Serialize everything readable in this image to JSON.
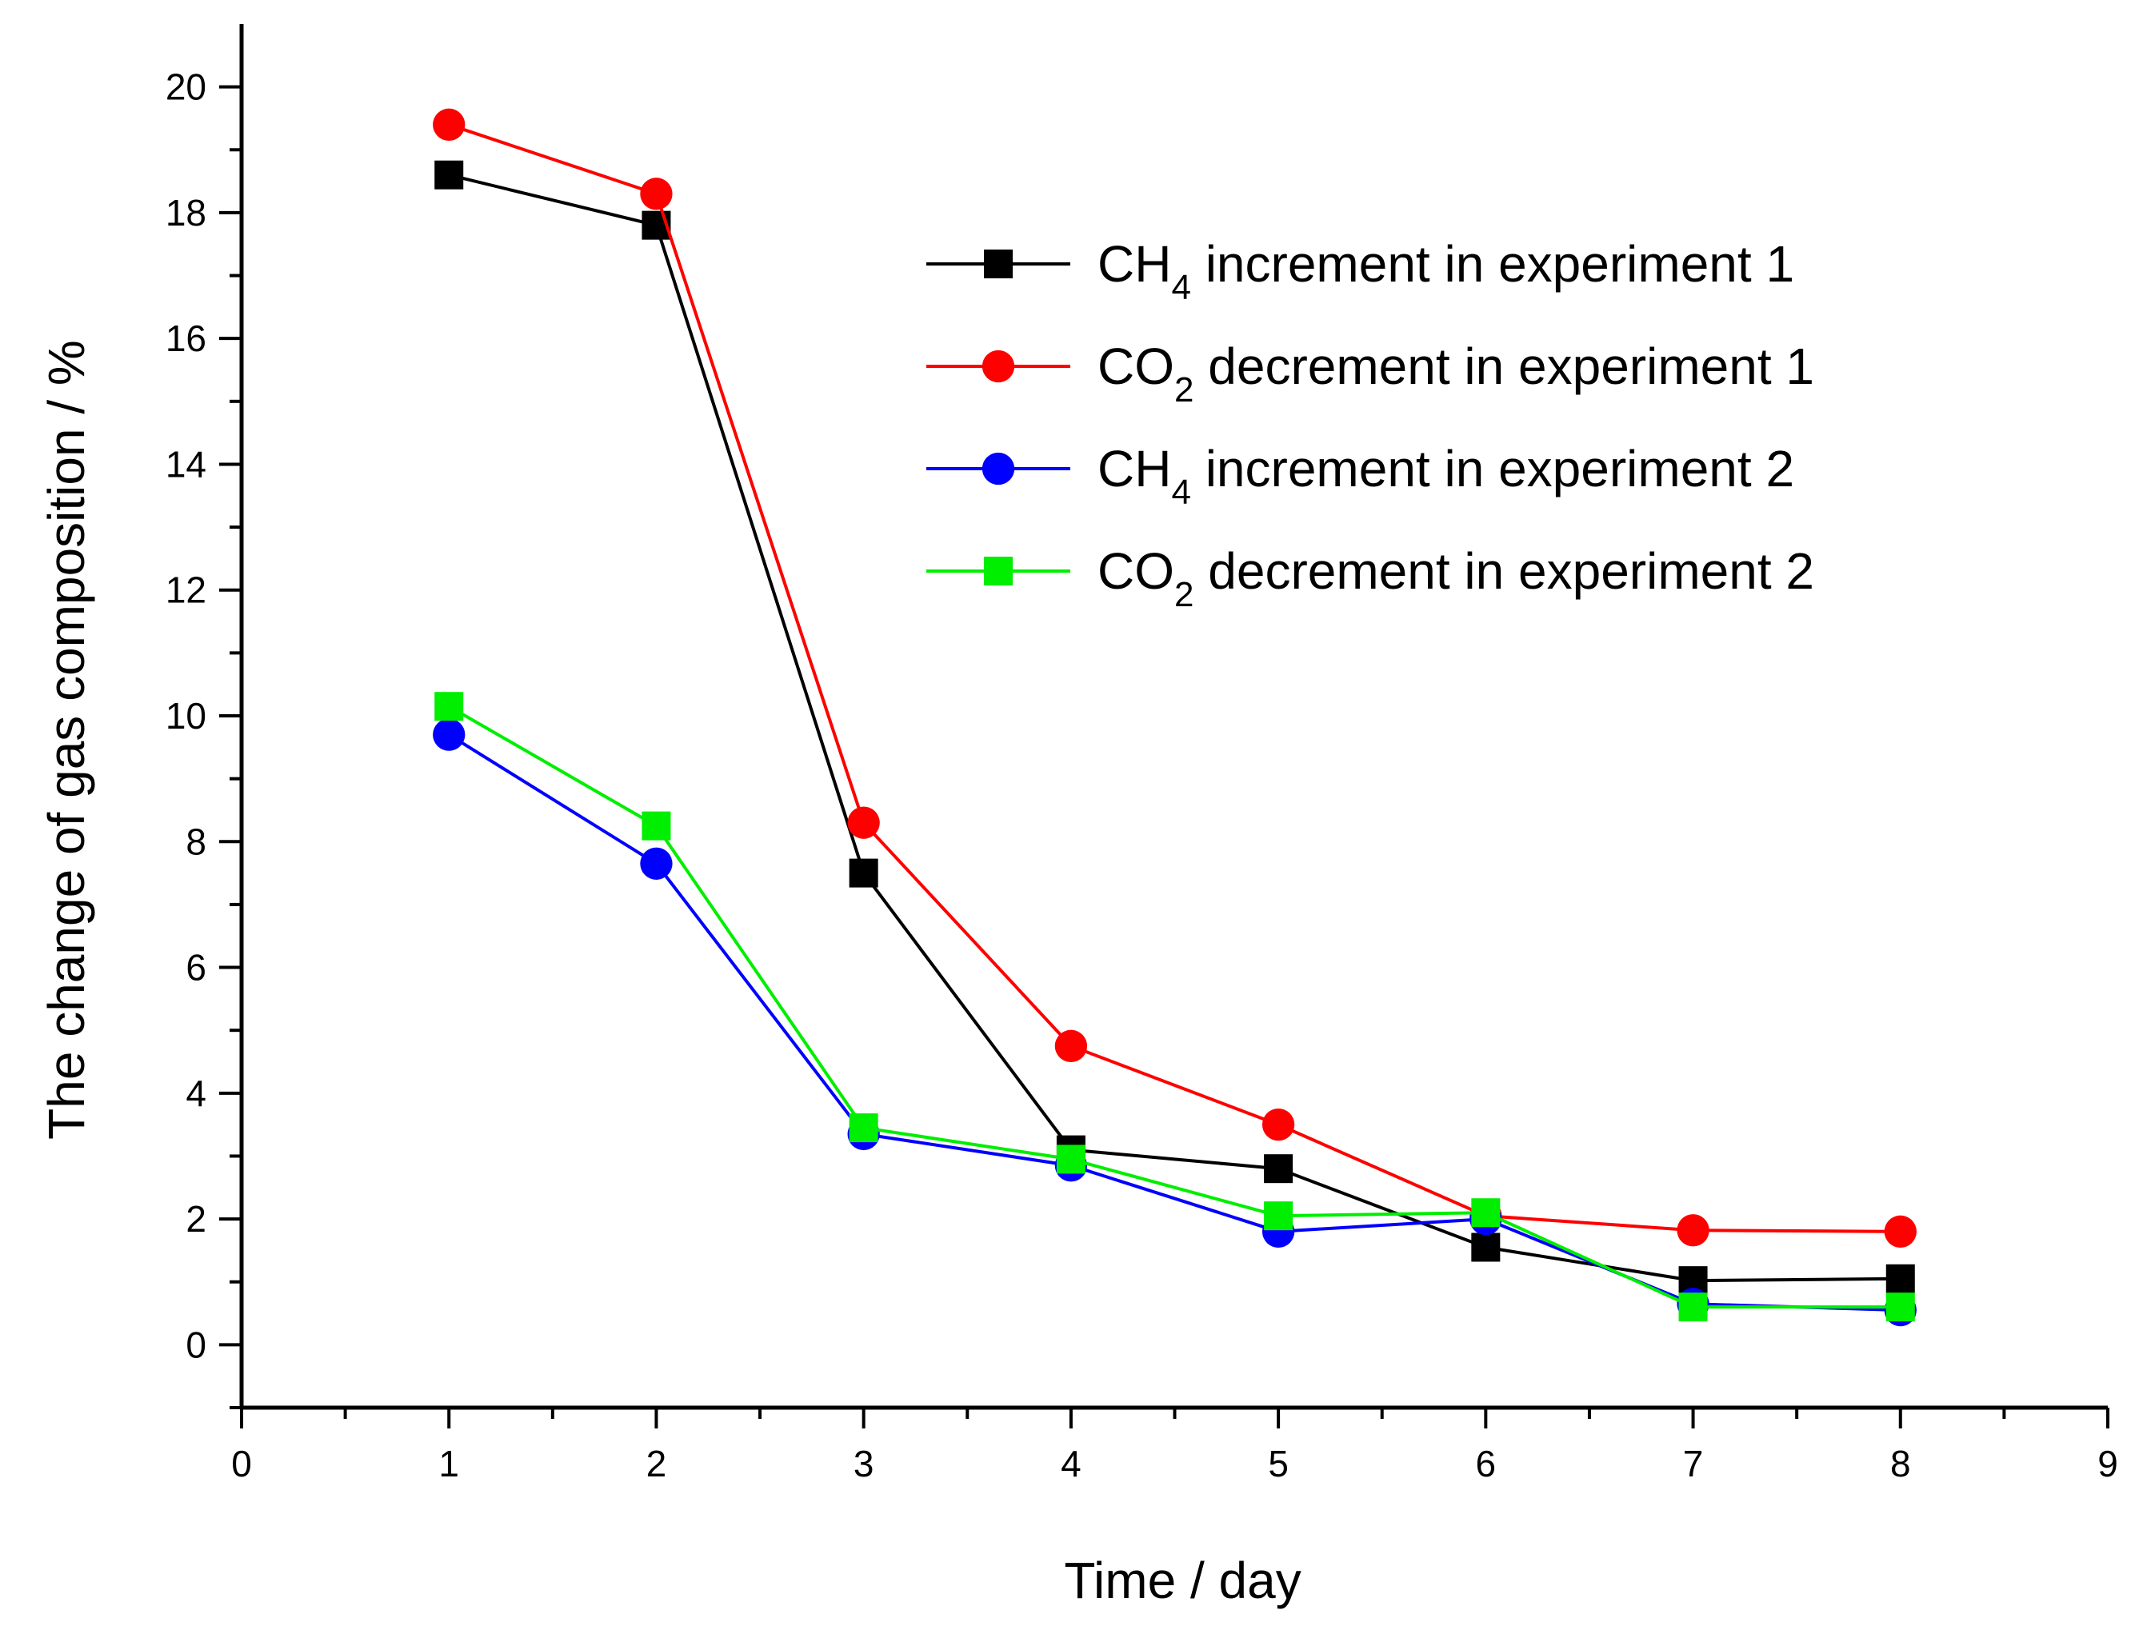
{
  "chart_data": {
    "type": "line",
    "title": "",
    "xlabel": "Time / day",
    "ylabel": "The change of gas composition / %",
    "xlim": [
      0,
      9
    ],
    "ylim": [
      -1,
      21
    ],
    "xticks": [
      0,
      1,
      2,
      3,
      4,
      5,
      6,
      7,
      8,
      9
    ],
    "yticks": [
      0,
      2,
      4,
      6,
      8,
      10,
      12,
      14,
      16,
      18,
      20
    ],
    "grid": false,
    "legend_position": "top-right",
    "x": [
      1,
      2,
      3,
      4,
      5,
      6,
      7,
      8
    ],
    "series": [
      {
        "name": "CH4 increment in experiment 1",
        "legend": {
          "pre": "CH",
          "sub": "4",
          "post": " increment in experiment 1"
        },
        "color": "#000000",
        "marker": "square",
        "values": [
          18.6,
          17.8,
          7.5,
          3.1,
          2.8,
          1.55,
          1.02,
          1.05
        ]
      },
      {
        "name": "CO2 decrement in experiment 1",
        "legend": {
          "pre": "CO",
          "sub": "2",
          "post": " decrement in experiment 1"
        },
        "color": "#ff0000",
        "marker": "circle",
        "values": [
          19.4,
          18.3,
          8.3,
          4.75,
          3.5,
          2.05,
          1.82,
          1.8
        ]
      },
      {
        "name": "CH4 increment in experiment 2",
        "legend": {
          "pre": "CH",
          "sub": "4",
          "post": " increment in experiment 2"
        },
        "color": "#0000ff",
        "marker": "circle",
        "values": [
          9.7,
          7.65,
          3.35,
          2.85,
          1.8,
          2.0,
          0.65,
          0.55
        ]
      },
      {
        "name": "CO2 decrement in experiment 2",
        "legend": {
          "pre": "CO",
          "sub": "2",
          "post": " decrement in experiment 2"
        },
        "color": "#00ee00",
        "marker": "square",
        "values": [
          10.15,
          8.25,
          3.45,
          2.95,
          2.05,
          2.1,
          0.6,
          0.6
        ]
      }
    ]
  }
}
